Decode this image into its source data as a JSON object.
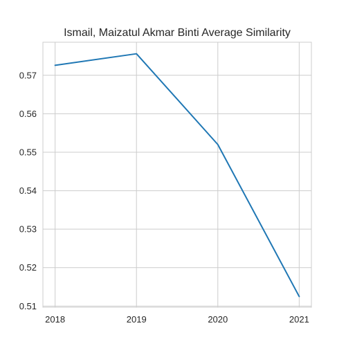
{
  "chart_data": {
    "type": "line",
    "title": "Ismail, Maizatul Akmar Binti Average Similarity",
    "xlabel": "",
    "ylabel": "",
    "x": [
      2018,
      2019,
      2020,
      2021
    ],
    "x_tick_labels": [
      "2018",
      "2019",
      "2020",
      "2021"
    ],
    "y_ticks": [
      0.51,
      0.52,
      0.53,
      0.54,
      0.55,
      0.56,
      0.57
    ],
    "y_tick_labels": [
      "0.51",
      "0.52",
      "0.53",
      "0.54",
      "0.55",
      "0.56",
      "0.57"
    ],
    "xlim": [
      2017.85,
      2021.15
    ],
    "ylim": [
      0.5097,
      0.5786
    ],
    "grid": true,
    "series": [
      {
        "color": "#1f77b4",
        "values": [
          0.5726,
          0.5756,
          0.552,
          0.5125
        ]
      }
    ]
  }
}
